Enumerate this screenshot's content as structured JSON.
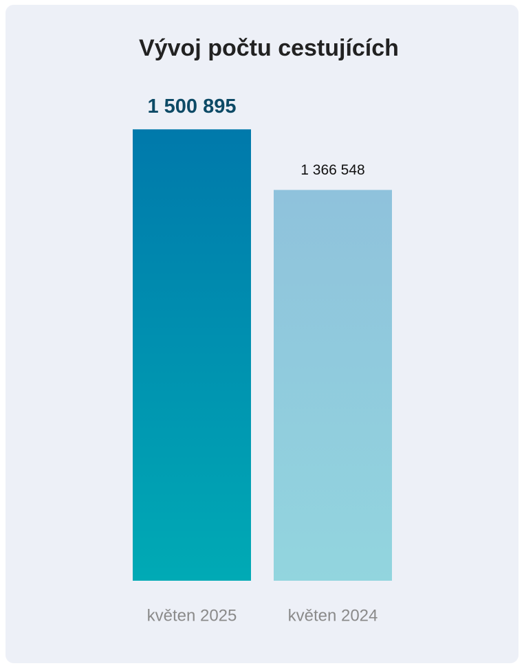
{
  "chart_data": {
    "type": "bar",
    "title": "Vývoj počtu cestujících",
    "categories": [
      "květen 2025",
      "květen 2024"
    ],
    "values": [
      1500895,
      1366548
    ],
    "value_labels": [
      "1 500 895",
      "1 366 548"
    ],
    "colors": [
      [
        "#0079ab",
        "#00aab5"
      ],
      [
        "#8fc2dc",
        "#92d5de"
      ]
    ],
    "ylim": [
      500000,
      1550000
    ]
  }
}
